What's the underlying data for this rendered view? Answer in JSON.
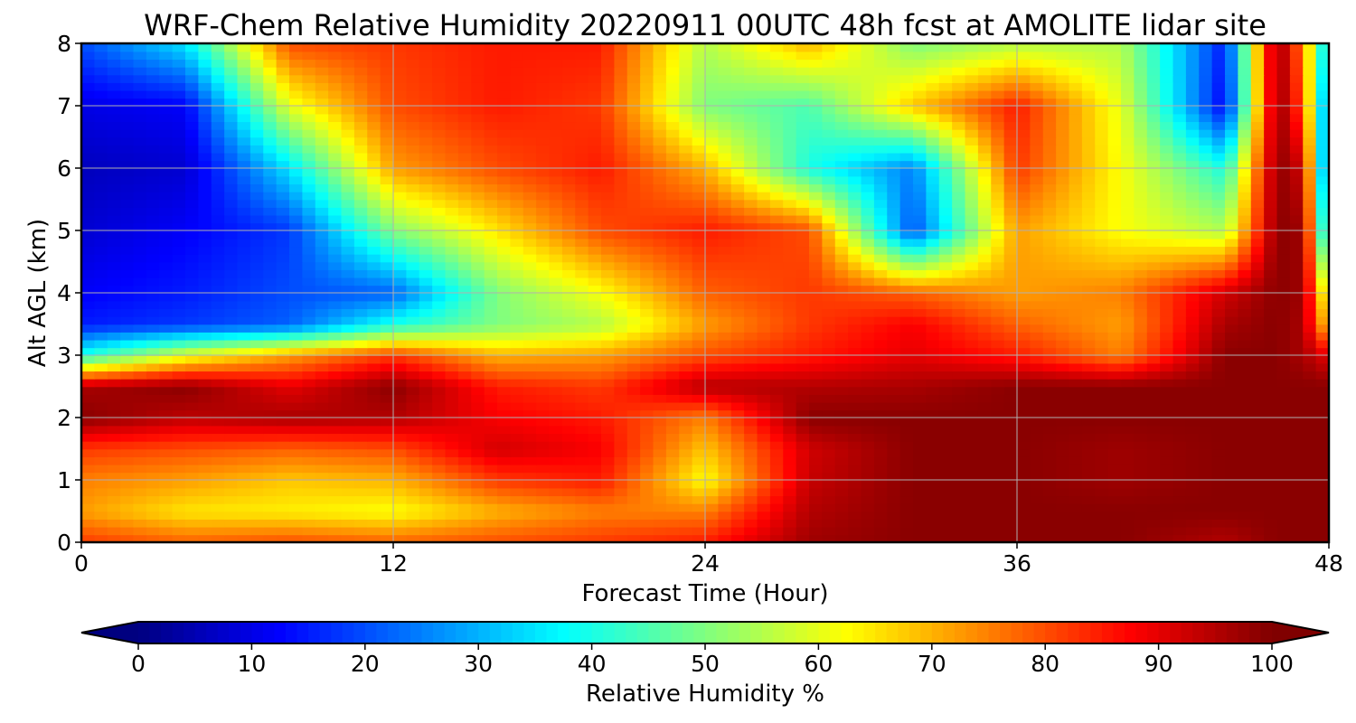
{
  "chart_data": {
    "type": "heatmap",
    "title": "WRF-Chem Relative Humidity 20220911 00UTC 48h fcst at AMOLITE lidar site",
    "xlabel": "Forecast Time (Hour)",
    "ylabel": "Alt AGL (km)",
    "xlim": [
      0,
      48
    ],
    "ylim": [
      0,
      8
    ],
    "x_ticks": [
      "0",
      "12",
      "24",
      "36",
      "48"
    ],
    "y_ticks": [
      "0",
      "1",
      "2",
      "3",
      "4",
      "5",
      "6",
      "7",
      "8"
    ],
    "grid": true,
    "colormap": "jet",
    "x": [
      0,
      4,
      8,
      12,
      16,
      20,
      24,
      28,
      32,
      36,
      40,
      44,
      46,
      47,
      48
    ],
    "y": [
      0,
      0.5,
      1,
      1.5,
      2,
      2.5,
      3,
      3.5,
      4,
      5,
      6,
      7,
      8
    ],
    "z": [
      [
        82,
        78,
        80,
        78,
        80,
        82,
        85,
        97,
        99,
        99,
        99,
        95,
        99,
        99,
        99
      ],
      [
        72,
        65,
        64,
        62,
        70,
        75,
        75,
        95,
        99,
        99,
        99,
        99,
        99,
        99,
        99
      ],
      [
        75,
        72,
        68,
        70,
        82,
        85,
        62,
        93,
        99,
        99,
        97,
        99,
        99,
        99,
        99
      ],
      [
        82,
        80,
        78,
        80,
        92,
        88,
        68,
        92,
        99,
        99,
        97,
        99,
        99,
        99,
        99
      ],
      [
        99,
        94,
        96,
        95,
        88,
        85,
        75,
        99,
        99,
        99,
        99,
        99,
        99,
        99,
        99
      ],
      [
        96,
        99,
        90,
        99,
        85,
        82,
        95,
        95,
        96,
        99,
        99,
        99,
        99,
        99,
        99
      ],
      [
        40,
        60,
        72,
        82,
        70,
        72,
        80,
        85,
        90,
        85,
        75,
        99,
        99,
        96,
        90
      ],
      [
        15,
        18,
        22,
        40,
        50,
        55,
        72,
        82,
        88,
        78,
        72,
        96,
        99,
        96,
        65
      ],
      [
        12,
        15,
        20,
        22,
        50,
        62,
        78,
        82,
        78,
        72,
        75,
        92,
        99,
        97,
        55
      ],
      [
        8,
        12,
        18,
        50,
        65,
        80,
        85,
        80,
        20,
        72,
        62,
        55,
        99,
        97,
        25
      ],
      [
        6,
        8,
        35,
        72,
        80,
        85,
        70,
        40,
        25,
        82,
        62,
        40,
        99,
        92,
        15
      ],
      [
        10,
        12,
        60,
        80,
        85,
        82,
        50,
        45,
        68,
        85,
        60,
        12,
        99,
        80,
        20
      ],
      [
        20,
        35,
        80,
        82,
        85,
        85,
        55,
        70,
        50,
        55,
        55,
        15,
        99,
        75,
        30
      ]
    ],
    "colorbar": {
      "label": "Relative Humidity %",
      "ticks": [
        "0",
        "10",
        "20",
        "30",
        "40",
        "50",
        "60",
        "70",
        "80",
        "90",
        "100"
      ],
      "min": 0,
      "max": 100,
      "extend": "both"
    }
  }
}
